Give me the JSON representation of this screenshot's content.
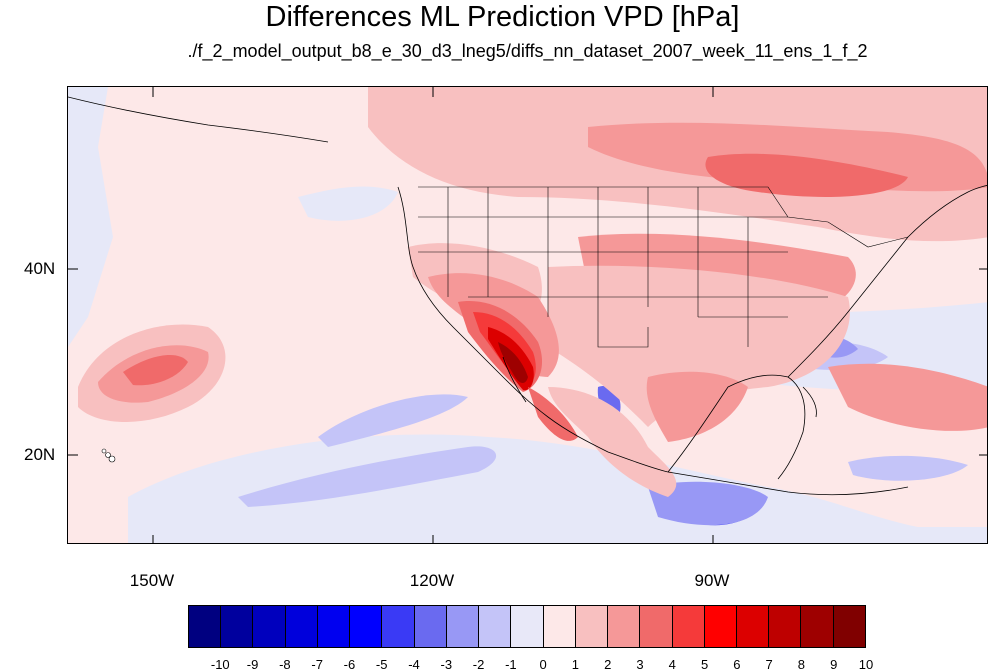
{
  "title": "Differences ML Prediction VPD [hPa]",
  "subtitle": "./f_2_model_output_b8_e_30_d3_lneg5/diffs_nn_dataset_2007_week_11_ens_1_f_2",
  "map": {
    "projection": "cylindrical equidistant",
    "lon_range": [
      -160,
      -62
    ],
    "lat_range": [
      11,
      60
    ],
    "lon_ticks": [
      "150W",
      "120W",
      "90W"
    ],
    "lat_ticks": [
      "40N",
      "20N"
    ],
    "region": "North America / North-East Pacific",
    "features": [
      "coastlines",
      "US state boundaries"
    ]
  },
  "colorbar": {
    "labels": [
      "-10",
      "-9",
      "-8",
      "-7",
      "-6",
      "-5",
      "-4",
      "-3",
      "-2",
      "-1",
      "0",
      "1",
      "2",
      "3",
      "4",
      "5",
      "6",
      "7",
      "8",
      "9",
      "10"
    ],
    "colors": [
      "#000080",
      "#00009e",
      "#0000be",
      "#0000dc",
      "#0000f0",
      "#0000ff",
      "#3a3af5",
      "#6a6af0",
      "#9898f5",
      "#c4c4f8",
      "#e8e8f8",
      "#fde8e8",
      "#f8c0c0",
      "#f59898",
      "#f06a6a",
      "#f53a3a",
      "#ff0000",
      "#dc0000",
      "#be0000",
      "#9e0000",
      "#800000"
    ]
  }
}
